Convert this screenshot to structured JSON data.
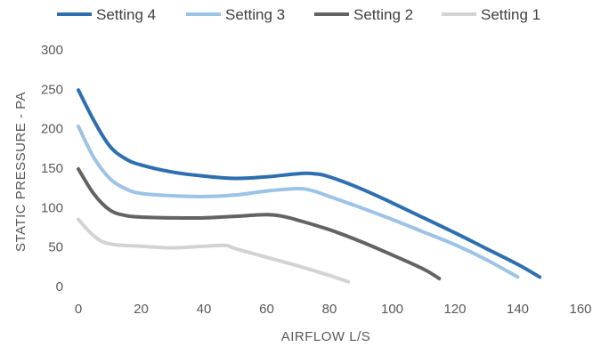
{
  "chart_data": {
    "type": "line",
    "title": "",
    "xlabel": "AIRFLOW L/S",
    "ylabel": "STATIC PRESSURE - PA",
    "xlim": [
      0,
      160
    ],
    "ylim": [
      0,
      300
    ],
    "x_ticks": [
      "0",
      "20",
      "40",
      "60",
      "80",
      "100",
      "120",
      "140",
      "160"
    ],
    "y_ticks": [
      "0",
      "50",
      "100",
      "150",
      "200",
      "250",
      "300"
    ],
    "grid": false,
    "legend_position": "top",
    "series": [
      {
        "name": "Setting 4",
        "color": "#2e6fb0",
        "points": [
          [
            0,
            249
          ],
          [
            5,
            210
          ],
          [
            10,
            178
          ],
          [
            15,
            162
          ],
          [
            20,
            154
          ],
          [
            30,
            145
          ],
          [
            40,
            140
          ],
          [
            50,
            137
          ],
          [
            60,
            139
          ],
          [
            70,
            143
          ],
          [
            75,
            143
          ],
          [
            80,
            139
          ],
          [
            90,
            124
          ],
          [
            100,
            106
          ],
          [
            110,
            87
          ],
          [
            120,
            68
          ],
          [
            130,
            48
          ],
          [
            140,
            28
          ],
          [
            147,
            12
          ]
        ]
      },
      {
        "name": "Setting 3",
        "color": "#9dc3e6",
        "points": [
          [
            0,
            203
          ],
          [
            5,
            163
          ],
          [
            10,
            137
          ],
          [
            15,
            124
          ],
          [
            20,
            118
          ],
          [
            30,
            115
          ],
          [
            40,
            114
          ],
          [
            50,
            116
          ],
          [
            60,
            121
          ],
          [
            70,
            124
          ],
          [
            75,
            121
          ],
          [
            80,
            114
          ],
          [
            90,
            100
          ],
          [
            100,
            85
          ],
          [
            110,
            69
          ],
          [
            120,
            53
          ],
          [
            130,
            34
          ],
          [
            140,
            12
          ]
        ]
      },
      {
        "name": "Setting 2",
        "color": "#636363",
        "points": [
          [
            0,
            149
          ],
          [
            5,
            117
          ],
          [
            10,
            97
          ],
          [
            15,
            90
          ],
          [
            20,
            88
          ],
          [
            30,
            87
          ],
          [
            40,
            87
          ],
          [
            50,
            89
          ],
          [
            60,
            91
          ],
          [
            65,
            89
          ],
          [
            70,
            84
          ],
          [
            80,
            72
          ],
          [
            90,
            57
          ],
          [
            100,
            40
          ],
          [
            110,
            22
          ],
          [
            115,
            10
          ]
        ]
      },
      {
        "name": "Setting 1",
        "color": "#d3d3d3",
        "points": [
          [
            0,
            85
          ],
          [
            5,
            64
          ],
          [
            10,
            54
          ],
          [
            20,
            51
          ],
          [
            30,
            49
          ],
          [
            40,
            51
          ],
          [
            47,
            52
          ],
          [
            50,
            48
          ],
          [
            60,
            37
          ],
          [
            70,
            26
          ],
          [
            80,
            14
          ],
          [
            86,
            6
          ]
        ]
      }
    ]
  }
}
